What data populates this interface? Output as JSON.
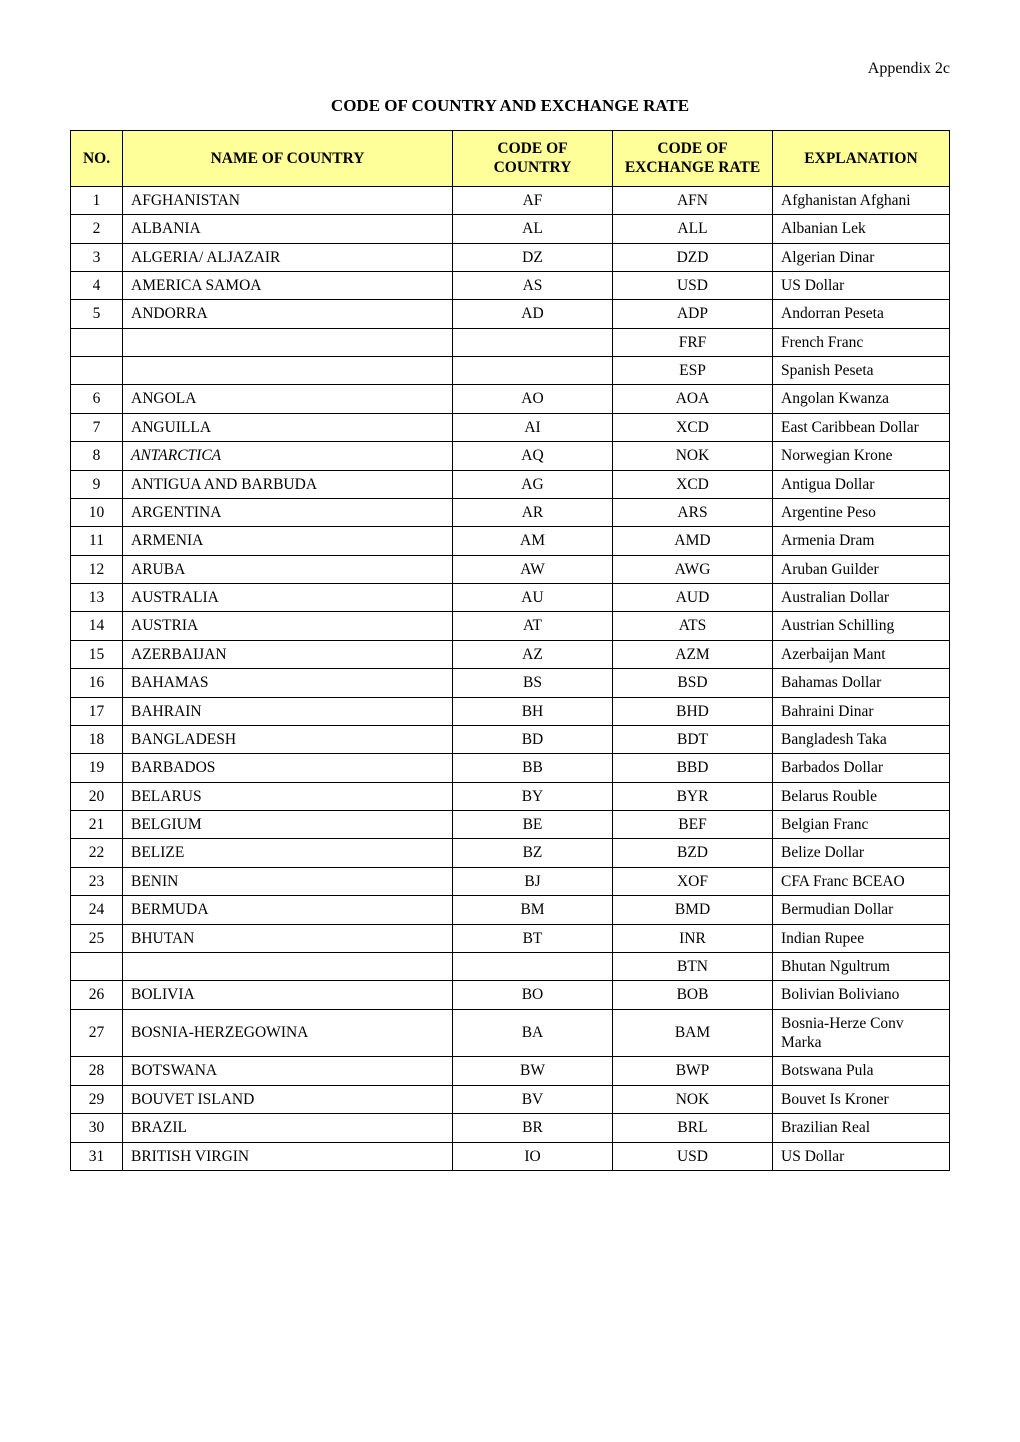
{
  "appendix_label": "Appendix 2c",
  "title": "CODE OF COUNTRY AND EXCHANGE RATE",
  "table": {
    "columns": [
      "NO.",
      "NAME OF COUNTRY",
      "CODE OF COUNTRY",
      "CODE OF EXCHANGE RATE",
      "EXPLANATION"
    ],
    "header_bg": "#ffff99",
    "rows": [
      {
        "no": "1",
        "name": "AFGHANISTAN",
        "code": "AF",
        "rate": "AFN",
        "exp": "Afghanistan Afghani"
      },
      {
        "no": "2",
        "name": "ALBANIA",
        "code": "AL",
        "rate": "ALL",
        "exp": "Albanian Lek"
      },
      {
        "no": "3",
        "name": "ALGERIA/ ALJAZAIR",
        "code": "DZ",
        "rate": "DZD",
        "exp": "Algerian Dinar"
      },
      {
        "no": "4",
        "name": "AMERICA SAMOA",
        "code": "AS",
        "rate": "USD",
        "exp": "US Dollar"
      },
      {
        "no": "5",
        "name": "ANDORRA",
        "code": "AD",
        "rate": "ADP",
        "exp": "Andorran Peseta"
      },
      {
        "no": "",
        "name": "",
        "code": "",
        "rate": "FRF",
        "exp": "French Franc"
      },
      {
        "no": "",
        "name": "",
        "code": "",
        "rate": "ESP",
        "exp": "Spanish Peseta"
      },
      {
        "no": "6",
        "name": "ANGOLA",
        "code": "AO",
        "rate": "AOA",
        "exp": "Angolan Kwanza"
      },
      {
        "no": "7",
        "name": "ANGUILLA",
        "code": "AI",
        "rate": "XCD",
        "exp": "East Caribbean Dollar"
      },
      {
        "no": "8",
        "name": "ANTARCTICA",
        "code": "AQ",
        "rate": "NOK",
        "exp": "Norwegian Krone",
        "name_italic": true
      },
      {
        "no": "9",
        "name": "ANTIGUA AND BARBUDA",
        "code": "AG",
        "rate": "XCD",
        "exp": "Antigua Dollar"
      },
      {
        "no": "10",
        "name": "ARGENTINA",
        "code": "AR",
        "rate": "ARS",
        "exp": "Argentine Peso"
      },
      {
        "no": "11",
        "name": "ARMENIA",
        "code": "AM",
        "rate": "AMD",
        "exp": "Armenia Dram"
      },
      {
        "no": "12",
        "name": "ARUBA",
        "code": "AW",
        "rate": "AWG",
        "exp": "Aruban Guilder"
      },
      {
        "no": "13",
        "name": "AUSTRALIA",
        "code": "AU",
        "rate": "AUD",
        "exp": "Australian Dollar"
      },
      {
        "no": "14",
        "name": "AUSTRIA",
        "code": "AT",
        "rate": "ATS",
        "exp": "Austrian Schilling"
      },
      {
        "no": "15",
        "name": "AZERBAIJAN",
        "code": "AZ",
        "rate": "AZM",
        "exp": "Azerbaijan Mant"
      },
      {
        "no": "16",
        "name": "BAHAMAS",
        "code": "BS",
        "rate": "BSD",
        "exp": "Bahamas Dollar"
      },
      {
        "no": "17",
        "name": "BAHRAIN",
        "code": "BH",
        "rate": "BHD",
        "exp": "Bahraini Dinar"
      },
      {
        "no": "18",
        "name": "BANGLADESH",
        "code": "BD",
        "rate": "BDT",
        "exp": "Bangladesh Taka"
      },
      {
        "no": "19",
        "name": "BARBADOS",
        "code": "BB",
        "rate": "BBD",
        "exp": "Barbados Dollar"
      },
      {
        "no": "20",
        "name": "BELARUS",
        "code": "BY",
        "rate": "BYR",
        "exp": "Belarus Rouble"
      },
      {
        "no": "21",
        "name": "BELGIUM",
        "code": "BE",
        "rate": "BEF",
        "exp": "Belgian Franc"
      },
      {
        "no": "22",
        "name": "BELIZE",
        "code": "BZ",
        "rate": "BZD",
        "exp": "Belize Dollar"
      },
      {
        "no": "23",
        "name": "BENIN",
        "code": "BJ",
        "rate": "XOF",
        "exp": "CFA Franc BCEAO"
      },
      {
        "no": "24",
        "name": "BERMUDA",
        "code": "BM",
        "rate": "BMD",
        "exp": "Bermudian Dollar"
      },
      {
        "no": "25",
        "name": "BHUTAN",
        "code": "BT",
        "rate": "INR",
        "exp": "Indian Rupee"
      },
      {
        "no": "",
        "name": "",
        "code": "",
        "rate": "BTN",
        "exp": "Bhutan Ngultrum"
      },
      {
        "no": "26",
        "name": "BOLIVIA",
        "code": "BO",
        "rate": "BOB",
        "exp": "Bolivian Boliviano"
      },
      {
        "no": "27",
        "name": "BOSNIA-HERZEGOWINA",
        "code": "BA",
        "rate": "BAM",
        "exp": "Bosnia-Herze Conv Marka"
      },
      {
        "no": "28",
        "name": "BOTSWANA",
        "code": "BW",
        "rate": "BWP",
        "exp": "Botswana Pula"
      },
      {
        "no": "29",
        "name": "BOUVET ISLAND",
        "code": "BV",
        "rate": "NOK",
        "exp": "Bouvet Is Kroner"
      },
      {
        "no": "30",
        "name": "BRAZIL",
        "code": "BR",
        "rate": "BRL",
        "exp": "Brazilian  Real"
      },
      {
        "no": "31",
        "name": "BRITISH VIRGIN",
        "code": "IO",
        "rate": "USD",
        "exp": "US Dollar"
      }
    ]
  }
}
